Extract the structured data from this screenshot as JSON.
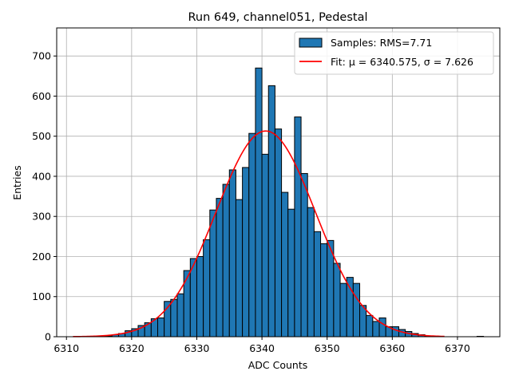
{
  "chart_data": {
    "type": "bar",
    "title": "Run 649, channel051, Pedestal",
    "xlabel": "ADC Counts",
    "ylabel": "Entries",
    "xlim": [
      6308.5,
      6376.5
    ],
    "ylim": [
      0,
      770
    ],
    "xticks": [
      6310,
      6320,
      6330,
      6340,
      6350,
      6360,
      6370
    ],
    "yticks": [
      0,
      100,
      200,
      300,
      400,
      500,
      600,
      700
    ],
    "grid": true,
    "legend_position": "top-right",
    "bin_width": 1,
    "series": [
      {
        "name": "Samples: RMS=7.71",
        "type": "histogram",
        "color": "#1f77b4",
        "edgecolor": "#000000",
        "bins": [
          6310,
          6311,
          6312,
          6313,
          6314,
          6315,
          6316,
          6317,
          6318,
          6319,
          6320,
          6321,
          6322,
          6323,
          6324,
          6325,
          6326,
          6327,
          6328,
          6329,
          6330,
          6331,
          6332,
          6333,
          6334,
          6335,
          6336,
          6337,
          6338,
          6339,
          6340,
          6341,
          6342,
          6343,
          6344,
          6345,
          6346,
          6347,
          6348,
          6349,
          6350,
          6351,
          6352,
          6353,
          6354,
          6355,
          6356,
          6357,
          6358,
          6359,
          6360,
          6361,
          6362,
          6363,
          6364,
          6365,
          6366,
          6367,
          6368,
          6369,
          6370,
          6371,
          6372,
          6373
        ],
        "values": [
          0,
          0,
          0,
          0,
          0,
          1,
          2,
          5,
          8,
          15,
          20,
          28,
          35,
          45,
          47,
          88,
          93,
          107,
          165,
          195,
          200,
          242,
          316,
          345,
          380,
          416,
          342,
          422,
          507,
          670,
          455,
          626,
          518,
          360,
          318,
          548,
          407,
          322,
          262,
          232,
          240,
          183,
          133,
          148,
          133,
          78,
          53,
          38,
          47,
          25,
          25,
          18,
          13,
          8,
          5,
          2,
          1,
          0,
          0,
          0,
          0,
          0,
          0,
          1
        ]
      },
      {
        "name": "Fit: μ = 6340.575, σ = 7.626",
        "type": "line",
        "color": "#ff0000",
        "mu": 6340.575,
        "sigma": 7.626,
        "peak": 513,
        "x_range": [
          6311,
          6368
        ]
      }
    ]
  }
}
